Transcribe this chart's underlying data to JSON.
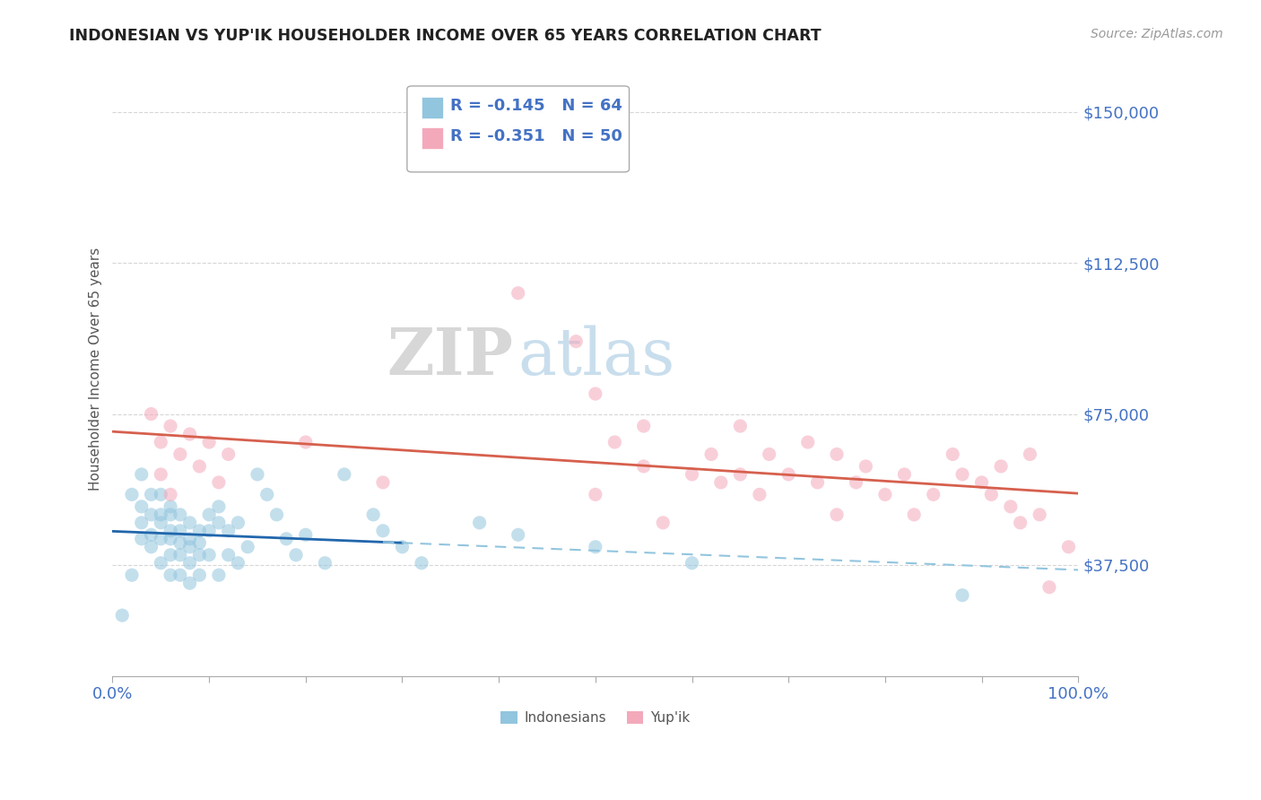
{
  "title": "INDONESIAN VS YUP'IK HOUSEHOLDER INCOME OVER 65 YEARS CORRELATION CHART",
  "source": "Source: ZipAtlas.com",
  "ylabel": "Householder Income Over 65 years",
  "xlim": [
    0.0,
    1.0
  ],
  "ylim": [
    10000,
    162500
  ],
  "yticks": [
    37500,
    75000,
    112500,
    150000
  ],
  "ytick_labels": [
    "$37,500",
    "$75,000",
    "$112,500",
    "$150,000"
  ],
  "legend1_r": "-0.145",
  "legend1_n": "64",
  "legend2_r": "-0.351",
  "legend2_n": "50",
  "indonesian_color": "#92c5de",
  "yupik_color": "#f4a9bb",
  "indonesian_line_color": "#2166ac",
  "yupik_line_color": "#d6604d",
  "dashed_line_color": "#92c5de",
  "watermark_zip": "ZIP",
  "watermark_atlas": "atlas",
  "background_color": "#ffffff",
  "grid_color": "#cccccc",
  "label_color": "#4472C4",
  "indonesian_x": [
    0.01,
    0.02,
    0.02,
    0.03,
    0.03,
    0.03,
    0.03,
    0.04,
    0.04,
    0.04,
    0.04,
    0.05,
    0.05,
    0.05,
    0.05,
    0.05,
    0.06,
    0.06,
    0.06,
    0.06,
    0.06,
    0.06,
    0.07,
    0.07,
    0.07,
    0.07,
    0.07,
    0.08,
    0.08,
    0.08,
    0.08,
    0.08,
    0.09,
    0.09,
    0.09,
    0.09,
    0.1,
    0.1,
    0.1,
    0.11,
    0.11,
    0.11,
    0.12,
    0.12,
    0.13,
    0.13,
    0.14,
    0.15,
    0.16,
    0.17,
    0.18,
    0.19,
    0.2,
    0.22,
    0.24,
    0.27,
    0.28,
    0.3,
    0.32,
    0.38,
    0.42,
    0.5,
    0.6,
    0.88
  ],
  "indonesian_y": [
    25000,
    55000,
    35000,
    52000,
    48000,
    44000,
    60000,
    50000,
    45000,
    55000,
    42000,
    55000,
    48000,
    44000,
    50000,
    38000,
    50000,
    46000,
    44000,
    52000,
    40000,
    35000,
    50000,
    46000,
    43000,
    40000,
    35000,
    48000,
    44000,
    42000,
    38000,
    33000,
    46000,
    43000,
    40000,
    35000,
    50000,
    46000,
    40000,
    52000,
    48000,
    35000,
    46000,
    40000,
    48000,
    38000,
    42000,
    60000,
    55000,
    50000,
    44000,
    40000,
    45000,
    38000,
    60000,
    50000,
    46000,
    42000,
    38000,
    48000,
    45000,
    42000,
    38000,
    30000
  ],
  "yupik_x": [
    0.04,
    0.05,
    0.05,
    0.06,
    0.06,
    0.07,
    0.08,
    0.09,
    0.1,
    0.11,
    0.12,
    0.2,
    0.28,
    0.42,
    0.48,
    0.5,
    0.5,
    0.52,
    0.55,
    0.55,
    0.57,
    0.6,
    0.62,
    0.63,
    0.65,
    0.65,
    0.67,
    0.68,
    0.7,
    0.72,
    0.73,
    0.75,
    0.75,
    0.77,
    0.78,
    0.8,
    0.82,
    0.83,
    0.85,
    0.87,
    0.88,
    0.9,
    0.91,
    0.92,
    0.93,
    0.94,
    0.95,
    0.96,
    0.97,
    0.99
  ],
  "yupik_y": [
    75000,
    68000,
    60000,
    72000,
    55000,
    65000,
    70000,
    62000,
    68000,
    58000,
    65000,
    68000,
    58000,
    105000,
    93000,
    80000,
    55000,
    68000,
    62000,
    72000,
    48000,
    60000,
    65000,
    58000,
    60000,
    72000,
    55000,
    65000,
    60000,
    68000,
    58000,
    65000,
    50000,
    58000,
    62000,
    55000,
    60000,
    50000,
    55000,
    65000,
    60000,
    58000,
    55000,
    62000,
    52000,
    48000,
    65000,
    50000,
    32000,
    42000
  ]
}
